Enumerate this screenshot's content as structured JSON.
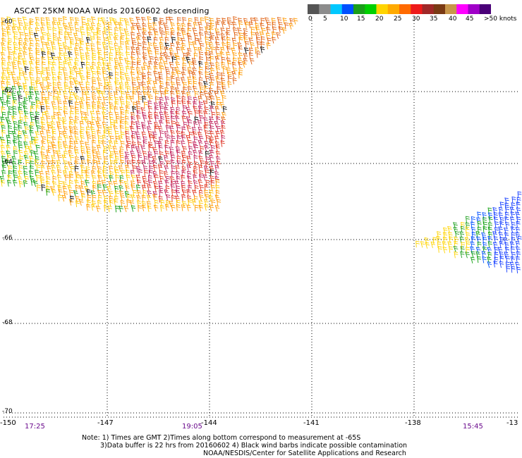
{
  "title": "ASCAT 25KM NOAA Winds 20160602 descending",
  "colorbar": {
    "labels": [
      "0",
      "5",
      "10",
      "15",
      "20",
      "25",
      "30",
      "35",
      "40",
      "45",
      ">50 knots"
    ],
    "colors": [
      "#555555",
      "#8c8c8c",
      "#00c8ff",
      "#0050ff",
      "#1a9e1a",
      "#00d000",
      "#ffd400",
      "#ffaa00",
      "#ff6a00",
      "#ee1a1a",
      "#a02828",
      "#7a3a14",
      "#c8964a",
      "#ff00ff",
      "#a000c8",
      "#4a0078"
    ]
  },
  "axes": {
    "lat_labels": [
      "-60",
      "-62",
      "-64",
      "-66",
      "-68",
      "-70"
    ],
    "lon_labels": [
      "-150",
      "-147",
      "-144",
      "-141",
      "-138",
      "-13"
    ],
    "time_labels": [
      "17:25",
      "19:05",
      "15:45"
    ]
  },
  "notes": {
    "line1": "Note: 1) Times are GMT 2)Times along bottom correspond to measurement at -65S",
    "line2": "3)Data buffer is 22 hrs from 20160602 4) Black wind barbs indicate possible contamination",
    "line3": "NOAA/NESDIS/Center for Satellite Applications and Research"
  }
}
